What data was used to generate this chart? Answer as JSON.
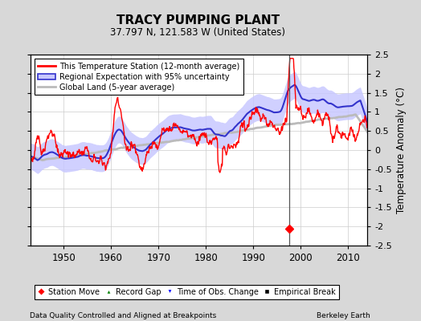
{
  "title": "TRACY PUMPING PLANT",
  "subtitle": "37.797 N, 121.583 W (United States)",
  "ylabel": "Temperature Anomaly (°C)",
  "xlabel_left": "Data Quality Controlled and Aligned at Breakpoints",
  "xlabel_right": "Berkeley Earth",
  "year_start": 1943,
  "year_end": 2014,
  "ylim": [
    -2.5,
    2.5
  ],
  "yticks": [
    -2.5,
    -2,
    -1.5,
    -1,
    -0.5,
    0,
    0.5,
    1,
    1.5,
    2,
    2.5
  ],
  "xticks": [
    1950,
    1960,
    1970,
    1980,
    1990,
    2000,
    2010
  ],
  "bg_color": "#d8d8d8",
  "plot_bg_color": "#ffffff",
  "station_move_year": 1997.5,
  "station_move_value": -2.05,
  "legend_items": [
    {
      "label": "This Temperature Station (12-month average)",
      "color": "red",
      "lw": 1.5
    },
    {
      "label": "Regional Expectation with 95% uncertainty",
      "color": "#5555cc"
    },
    {
      "label": "Global Land (5-year average)",
      "color": "#aaaaaa"
    }
  ],
  "legend_markers": [
    {
      "label": "Station Move",
      "color": "red",
      "marker": "D"
    },
    {
      "label": "Record Gap",
      "color": "green",
      "marker": "^"
    },
    {
      "label": "Time of Obs. Change",
      "color": "blue",
      "marker": "v"
    },
    {
      "label": "Empirical Break",
      "color": "black",
      "marker": "s"
    }
  ]
}
